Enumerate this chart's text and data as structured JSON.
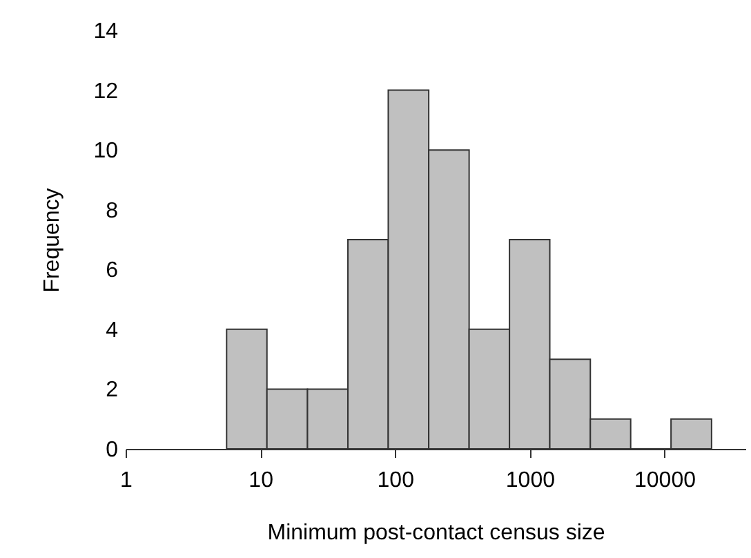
{
  "chart_data": {
    "type": "histogram",
    "xlabel": "Minimum post-contact census size",
    "ylabel": "Frequency",
    "bins": [
      5.62,
      11.2,
      22.4,
      44.7,
      89.1,
      178,
      355,
      708,
      1410,
      2820,
      5620,
      11200,
      22400
    ],
    "values": [
      4,
      2,
      2,
      7,
      12,
      10,
      4,
      7,
      3,
      1,
      0,
      1
    ],
    "color": "#c0c0c0",
    "log": "x",
    "xlim": [
      1,
      40000
    ],
    "xticks": [
      1,
      10,
      100,
      1000,
      10000
    ],
    "ylim": [
      0,
      14
    ],
    "yticks": [
      0,
      2,
      4,
      6,
      8,
      10,
      12,
      14
    ],
    "grid": false
  }
}
